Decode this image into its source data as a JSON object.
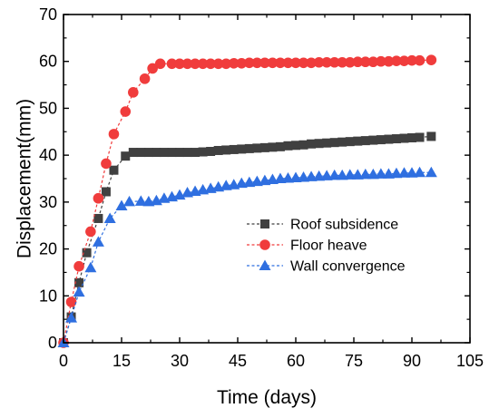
{
  "chart_data": {
    "type": "line",
    "title": "",
    "xlabel": "Time (days)",
    "ylabel": "Displacement(mm)",
    "xlim": [
      0,
      105
    ],
    "ylim": [
      0,
      70
    ],
    "xticks": [
      0,
      15,
      30,
      45,
      60,
      75,
      90,
      105
    ],
    "yticks": [
      0,
      10,
      20,
      30,
      40,
      50,
      60,
      70
    ],
    "grid": false,
    "legend_position": "center-right",
    "series": [
      {
        "name": "Roof subsidence",
        "color": "#404040",
        "marker": "square",
        "x": [
          0,
          2,
          4,
          6,
          9,
          11,
          13,
          16,
          18,
          20,
          22,
          24,
          26,
          28,
          30,
          32,
          34,
          36,
          38,
          40,
          42,
          44,
          46,
          48,
          50,
          52,
          54,
          56,
          58,
          60,
          62,
          64,
          66,
          68,
          70,
          72,
          74,
          76,
          78,
          80,
          82,
          84,
          86,
          88,
          90,
          92,
          95
        ],
        "y": [
          0,
          5.5,
          12.8,
          19.2,
          26.5,
          32.2,
          36.8,
          39.8,
          40.6,
          40.6,
          40.6,
          40.6,
          40.6,
          40.6,
          40.6,
          40.6,
          40.6,
          40.7,
          40.8,
          41,
          41.1,
          41.2,
          41.3,
          41.4,
          41.5,
          41.6,
          41.7,
          41.8,
          42,
          42.1,
          42.2,
          42.4,
          42.5,
          42.6,
          42.7,
          42.8,
          42.9,
          43,
          43.1,
          43.2,
          43.3,
          43.4,
          43.5,
          43.6,
          43.7,
          43.8,
          44
        ]
      },
      {
        "name": "Floor heave",
        "color": "#f03c3c",
        "marker": "circle",
        "x": [
          0,
          2,
          4,
          7,
          9,
          11,
          13,
          16,
          18,
          21,
          23,
          25,
          28,
          30,
          32,
          34,
          36,
          38,
          40,
          42,
          44,
          46,
          48,
          50,
          52,
          54,
          56,
          58,
          60,
          62,
          64,
          66,
          68,
          70,
          72,
          74,
          76,
          78,
          80,
          82,
          84,
          86,
          88,
          90,
          92,
          95
        ],
        "y": [
          0,
          8.7,
          16.3,
          23.7,
          30.8,
          38.2,
          44.5,
          49.3,
          53.4,
          56.3,
          58.5,
          59.5,
          59.5,
          59.5,
          59.5,
          59.5,
          59.5,
          59.5,
          59.5,
          59.5,
          59.6,
          59.6,
          59.7,
          59.7,
          59.7,
          59.7,
          59.7,
          59.7,
          59.7,
          59.7,
          59.7,
          59.8,
          59.8,
          59.8,
          59.8,
          59.8,
          59.9,
          59.9,
          59.9,
          60,
          60,
          60.1,
          60.1,
          60.2,
          60.2,
          60.3
        ]
      },
      {
        "name": "Wall convergence",
        "color": "#2f6fe0",
        "marker": "triangle",
        "x": [
          0,
          2,
          4,
          7,
          9,
          12,
          15,
          17,
          20,
          22,
          24,
          26,
          28,
          30,
          32,
          34,
          36,
          38,
          40,
          42,
          44,
          46,
          48,
          50,
          52,
          54,
          56,
          58,
          60,
          62,
          64,
          66,
          68,
          70,
          72,
          74,
          76,
          78,
          80,
          82,
          84,
          86,
          88,
          90,
          92,
          95
        ],
        "y": [
          0,
          5.3,
          10.8,
          16,
          21.5,
          26.5,
          29.2,
          30.1,
          30.2,
          30.1,
          30.3,
          30.8,
          31.1,
          31.5,
          32,
          32.3,
          32.6,
          32.9,
          33.2,
          33.5,
          33.7,
          34,
          34.2,
          34.4,
          34.6,
          34.8,
          35,
          35.1,
          35.2,
          35.3,
          35.4,
          35.5,
          35.6,
          35.7,
          35.7,
          35.8,
          35.8,
          35.9,
          35.9,
          36,
          36,
          36.1,
          36.2,
          36.2,
          36.3,
          36.3
        ]
      }
    ]
  }
}
